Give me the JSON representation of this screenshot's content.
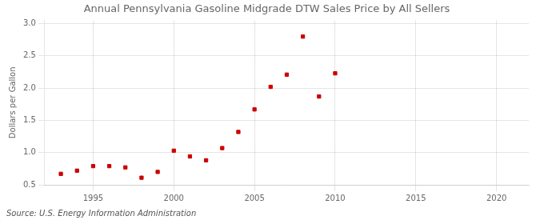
{
  "chart_data": {
    "type": "scatter",
    "title": "Annual Pennsylvania Gasoline Midgrade DTW Sales Price by All Sellers",
    "y_label": "Dollars per Gallon",
    "annotation": "Source: U.S. Energy Information Administration",
    "x": [
      1993,
      1994,
      1995,
      1996,
      1997,
      1998,
      1999,
      2000,
      2001,
      2002,
      2003,
      2004,
      2005,
      2006,
      2007,
      2008,
      2009,
      2010
    ],
    "values": [
      0.67,
      0.72,
      0.79,
      0.79,
      0.77,
      0.61,
      0.7,
      1.03,
      0.94,
      0.88,
      1.07,
      1.32,
      1.67,
      2.02,
      2.21,
      2.8,
      1.87,
      2.23
    ],
    "color": "#cc0000",
    "marker": "square",
    "xlim": [
      1992,
      2022
    ],
    "xticks": [
      1995,
      2000,
      2005,
      2010,
      2015,
      2020
    ],
    "ylim": [
      0.5,
      3.05
    ],
    "yticks": [
      0.5,
      {
        "value": 1.0,
        "label": "1.0"
      },
      1.5,
      {
        "value": 2.0,
        "label": "2.0"
      },
      2.5,
      {
        "value": 3.0,
        "label": "3.0"
      }
    ],
    "grid": true
  }
}
